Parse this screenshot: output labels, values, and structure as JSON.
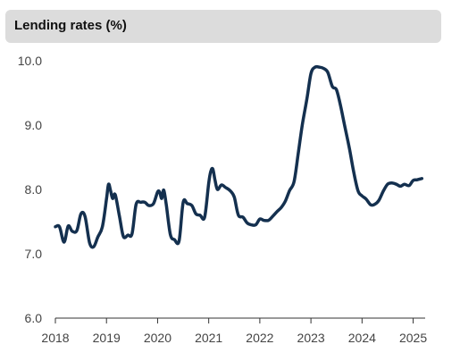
{
  "chart_data": {
    "type": "line",
    "title": "Lending rates (%)",
    "xlabel": "",
    "ylabel": "",
    "xlim": [
      2018.0,
      2025.2
    ],
    "ylim": [
      6.0,
      10.0
    ],
    "yticks": [
      "6.0",
      "7.0",
      "8.0",
      "9.0",
      "10.0"
    ],
    "xticks": [
      "2018",
      "2019",
      "2020",
      "2021",
      "2022",
      "2023",
      "2024",
      "2025"
    ],
    "grid": false,
    "legend": "none",
    "colors": {
      "line": "#14304f",
      "axis": "#333333",
      "title_bg": "#dcdcdc"
    },
    "series": [
      {
        "x": [
          2018.0,
          2018.08,
          2018.17,
          2018.25,
          2018.33,
          2018.42,
          2018.5,
          2018.58,
          2018.67,
          2018.75,
          2018.83,
          2018.92,
          2019.0,
          2019.04,
          2019.08,
          2019.12,
          2019.17,
          2019.25,
          2019.33,
          2019.42,
          2019.5,
          2019.58,
          2019.67,
          2019.75,
          2019.83,
          2019.92,
          2020.0,
          2020.04,
          2020.08,
          2020.12,
          2020.17,
          2020.25,
          2020.33,
          2020.42,
          2020.5,
          2020.58,
          2020.67,
          2020.75,
          2020.83,
          2020.92,
          2021.0,
          2021.04,
          2021.08,
          2021.12,
          2021.17,
          2021.25,
          2021.33,
          2021.42,
          2021.5,
          2021.58,
          2021.67,
          2021.75,
          2021.83,
          2021.92,
          2022.0,
          2022.08,
          2022.17,
          2022.25,
          2022.33,
          2022.42,
          2022.5,
          2022.58,
          2022.67,
          2022.75,
          2022.83,
          2022.92,
          2023.0,
          2023.08,
          2023.17,
          2023.25,
          2023.33,
          2023.42,
          2023.5,
          2023.58,
          2023.67,
          2023.75,
          2023.83,
          2023.92,
          2024.0,
          2024.08,
          2024.17,
          2024.25,
          2024.33,
          2024.42,
          2024.5,
          2024.58,
          2024.67,
          2024.75,
          2024.83,
          2024.92,
          2025.0,
          2025.08,
          2025.17
        ],
        "y": [
          7.42,
          7.42,
          7.18,
          7.43,
          7.35,
          7.36,
          7.62,
          7.58,
          7.17,
          7.11,
          7.26,
          7.42,
          7.85,
          8.08,
          7.98,
          7.86,
          7.92,
          7.6,
          7.27,
          7.29,
          7.31,
          7.77,
          7.8,
          7.8,
          7.75,
          7.78,
          7.96,
          7.96,
          7.86,
          7.99,
          7.76,
          7.3,
          7.22,
          7.2,
          7.8,
          7.78,
          7.75,
          7.62,
          7.6,
          7.57,
          8.1,
          8.28,
          8.32,
          8.16,
          8.0,
          8.07,
          8.03,
          7.98,
          7.88,
          7.6,
          7.57,
          7.48,
          7.45,
          7.45,
          7.54,
          7.52,
          7.52,
          7.58,
          7.65,
          7.72,
          7.82,
          7.98,
          8.12,
          8.55,
          9.0,
          9.4,
          9.8,
          9.9,
          9.9,
          9.88,
          9.82,
          9.6,
          9.55,
          9.3,
          8.95,
          8.65,
          8.3,
          7.98,
          7.9,
          7.85,
          7.76,
          7.77,
          7.83,
          7.98,
          8.08,
          8.1,
          8.08,
          8.05,
          8.08,
          8.06,
          8.14,
          8.15,
          8.17
        ]
      }
    ]
  }
}
